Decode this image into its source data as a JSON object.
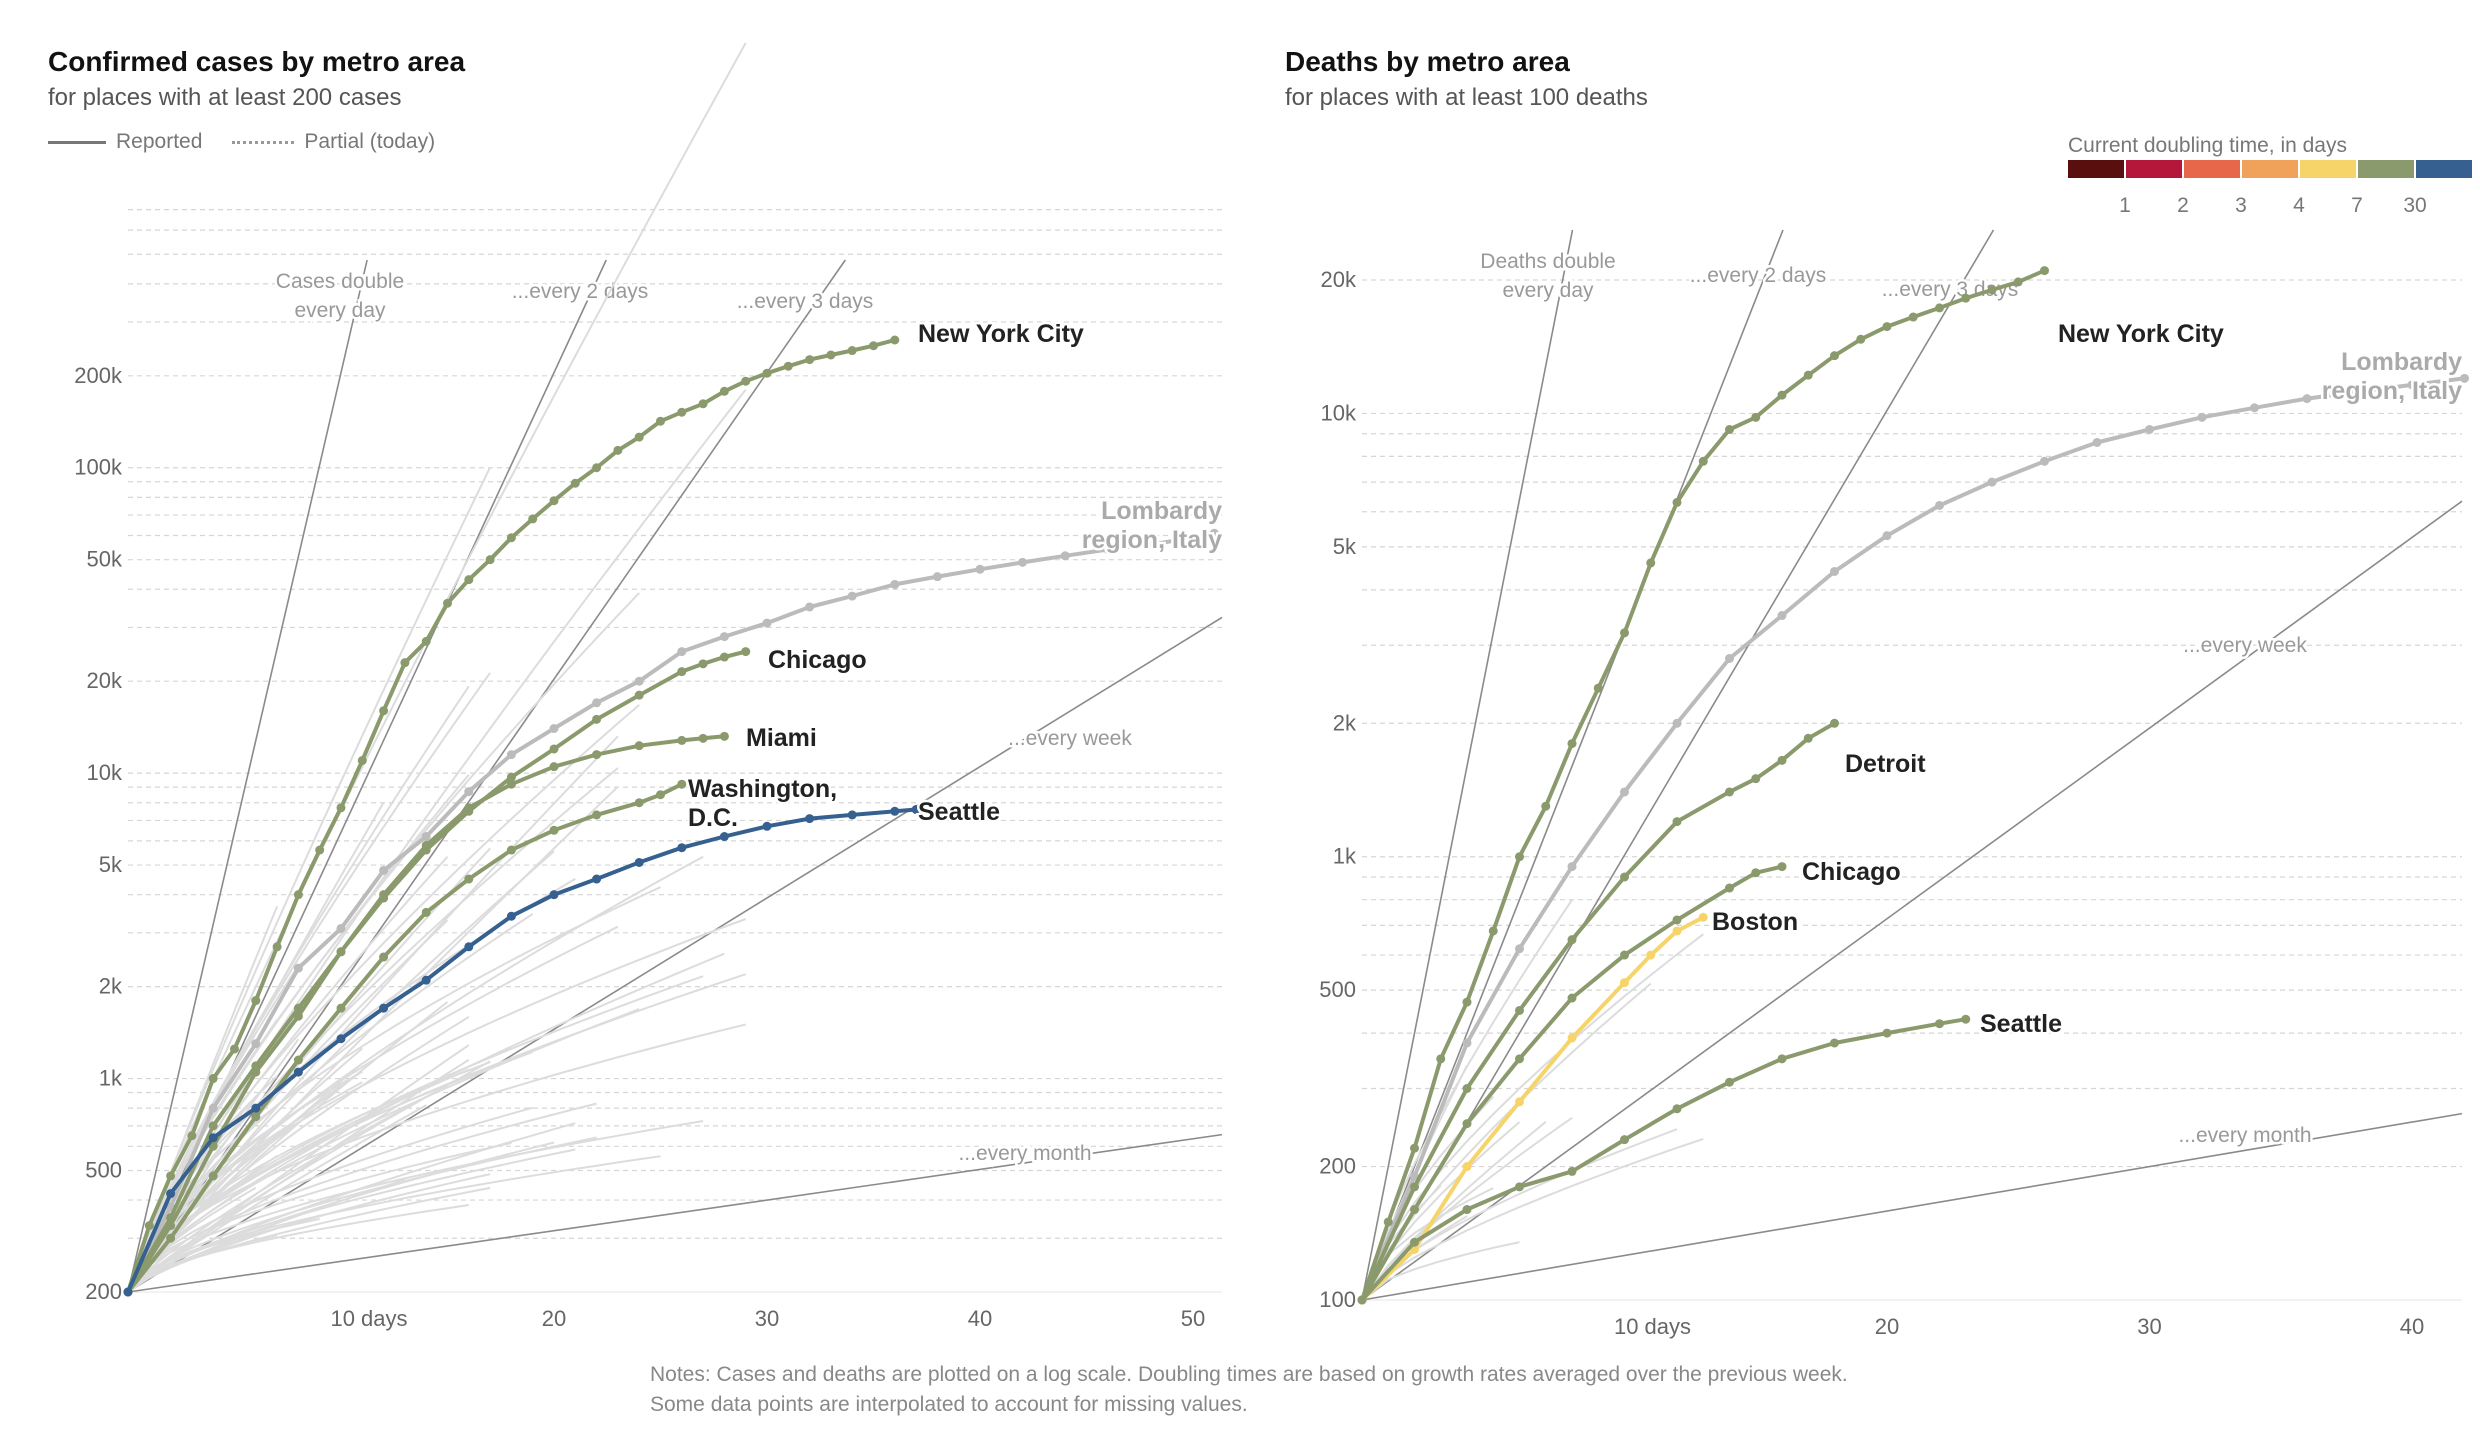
{
  "header": {
    "left_title": "Confirmed cases by metro area",
    "left_subtitle": "for places with at least 200 cases",
    "legend_reported": "Reported",
    "legend_partial": "Partial (today)",
    "right_title": "Deaths by metro area",
    "right_subtitle": "for places with at least 100 deaths",
    "color_legend_title": "Current doubling time, in days"
  },
  "color_legend": [
    {
      "label": "1",
      "color": "#5a0f0f"
    },
    {
      "label": "2",
      "color": "#b4173a"
    },
    {
      "label": "3",
      "color": "#e7674a"
    },
    {
      "label": "4",
      "color": "#f0a15a"
    },
    {
      "label": "7",
      "color": "#f6d46a"
    },
    {
      "label": "30",
      "color": "#8a9a6c"
    },
    {
      "label": "",
      "color": "#35608f"
    }
  ],
  "notes": "Notes: Cases and deaths are plotted on a log scale. Doubling times are based on growth rates averaged over the previous week. Some data points are interpolated to account for missing values.",
  "chart_data": [
    {
      "type": "line",
      "title": "Confirmed cases by metro area",
      "subtitle": "for places with at least 200 cases",
      "xlabel": "days",
      "x_tick_labels": [
        "10 days",
        "20",
        "30",
        "40",
        "50"
      ],
      "x_ticks": [
        10,
        20,
        30,
        40,
        50
      ],
      "xlim": [
        0,
        52
      ],
      "ylim": [
        200,
        400000
      ],
      "yscale": "log",
      "y_ticks": [
        200,
        500,
        1000,
        2000,
        5000,
        10000,
        20000,
        50000,
        100000,
        200000
      ],
      "y_tick_labels": [
        "200",
        "500",
        "1k",
        "2k",
        "5k",
        "10k",
        "20k",
        "50k",
        "100k",
        "200k"
      ],
      "grid": true,
      "doubling_guides": [
        {
          "label": "Cases double every day",
          "days": 1
        },
        {
          "label": "...every 2 days",
          "days": 2
        },
        {
          "label": "...every 3 days",
          "days": 3
        },
        {
          "label": "...every week",
          "days": 7
        },
        {
          "label": "...every month",
          "days": 30
        }
      ],
      "series": [
        {
          "name": "New York City",
          "color": "#8a9a6c",
          "highlight": true,
          "x": [
            0,
            1,
            2,
            3,
            4,
            5,
            6,
            7,
            8,
            9,
            10,
            11,
            12,
            13,
            14,
            15,
            16,
            17,
            18,
            19,
            20,
            21,
            22,
            23,
            24,
            25,
            26,
            27,
            28,
            29,
            30,
            31,
            32,
            33,
            34,
            35,
            36
          ],
          "y": [
            200,
            330,
            480,
            650,
            1000,
            1250,
            1800,
            2700,
            4000,
            5600,
            7700,
            11000,
            16000,
            23000,
            27000,
            36000,
            43000,
            50000,
            59000,
            68000,
            78000,
            89000,
            100000,
            114000,
            126000,
            142000,
            152000,
            162000,
            178000,
            192000,
            204000,
            215000,
            226000,
            234000,
            242000,
            251000,
            262000
          ]
        },
        {
          "name": "Lombardy region, Italy",
          "color": "#bbbbbb",
          "highlight": true,
          "x": [
            0,
            2,
            4,
            6,
            8,
            10,
            12,
            14,
            16,
            18,
            20,
            22,
            24,
            26,
            28,
            30,
            32,
            34,
            36,
            38,
            40,
            42,
            44,
            46,
            48,
            50,
            51
          ],
          "y": [
            200,
            380,
            800,
            1300,
            2300,
            3100,
            4800,
            6200,
            8700,
            11500,
            14000,
            17000,
            20000,
            25000,
            28000,
            31000,
            35000,
            38000,
            41500,
            44000,
            46500,
            49000,
            51500,
            54000,
            56000,
            59000,
            61000
          ]
        },
        {
          "name": "Chicago",
          "color": "#8a9a6c",
          "highlight": true,
          "x": [
            0,
            2,
            4,
            6,
            8,
            10,
            12,
            14,
            16,
            18,
            20,
            22,
            24,
            26,
            27,
            28,
            29
          ],
          "y": [
            200,
            350,
            700,
            1100,
            1700,
            2600,
            3900,
            5600,
            7500,
            9700,
            12000,
            15000,
            18000,
            21500,
            22800,
            24000,
            25000
          ]
        },
        {
          "name": "Miami",
          "color": "#8a9a6c",
          "highlight": true,
          "x": [
            0,
            2,
            4,
            6,
            8,
            10,
            12,
            14,
            16,
            18,
            20,
            22,
            24,
            26,
            27,
            28
          ],
          "y": [
            200,
            330,
            600,
            1050,
            1600,
            2600,
            4000,
            5800,
            7700,
            9200,
            10500,
            11500,
            12300,
            12800,
            13000,
            13200
          ]
        },
        {
          "name": "Washington, D.C.",
          "color": "#8a9a6c",
          "highlight": true,
          "x": [
            0,
            2,
            4,
            6,
            8,
            10,
            12,
            14,
            16,
            18,
            20,
            22,
            24,
            25,
            26
          ],
          "y": [
            200,
            300,
            480,
            750,
            1150,
            1700,
            2500,
            3500,
            4500,
            5600,
            6500,
            7300,
            8000,
            8500,
            9200
          ]
        },
        {
          "name": "Seattle",
          "color": "#35608f",
          "highlight": true,
          "x": [
            0,
            2,
            4,
            6,
            8,
            10,
            12,
            14,
            16,
            18,
            20,
            22,
            24,
            26,
            28,
            30,
            32,
            34,
            36,
            37
          ],
          "y": [
            200,
            420,
            640,
            800,
            1050,
            1350,
            1700,
            2100,
            2700,
            3400,
            4000,
            4500,
            5100,
            5700,
            6200,
            6700,
            7100,
            7300,
            7500,
            7600
          ]
        }
      ],
      "labels": [
        "New York City",
        "Lombardy region, Italy",
        "Chicago",
        "Miami",
        "Washington, D.C.",
        "Seattle"
      ]
    },
    {
      "type": "line",
      "title": "Deaths by metro area",
      "subtitle": "for places with at least 100 deaths",
      "xlabel": "days",
      "x_tick_labels": [
        "10 days",
        "20",
        "30",
        "40"
      ],
      "x_ticks": [
        10,
        20,
        30,
        40
      ],
      "xlim": [
        0,
        42
      ],
      "ylim": [
        100,
        30000
      ],
      "yscale": "log",
      "y_ticks": [
        100,
        200,
        500,
        1000,
        2000,
        5000,
        10000,
        20000
      ],
      "y_tick_labels": [
        "100",
        "200",
        "500",
        "1k",
        "2k",
        "5k",
        "10k",
        "20k"
      ],
      "grid": true,
      "doubling_guides": [
        {
          "label": "Deaths double every day",
          "days": 1
        },
        {
          "label": "...every 2 days",
          "days": 2
        },
        {
          "label": "...every 3 days",
          "days": 3
        },
        {
          "label": "...every week",
          "days": 7
        },
        {
          "label": "...every month",
          "days": 30
        }
      ],
      "series": [
        {
          "name": "New York City",
          "color": "#8a9a6c",
          "highlight": true,
          "x": [
            0,
            1,
            2,
            3,
            4,
            5,
            6,
            7,
            8,
            9,
            10,
            11,
            12,
            13,
            14,
            15,
            16,
            17,
            18,
            19,
            20,
            21,
            22,
            23,
            24,
            25,
            26
          ],
          "y": [
            100,
            150,
            220,
            350,
            470,
            680,
            1000,
            1300,
            1800,
            2400,
            3200,
            4600,
            6300,
            7800,
            9200,
            9800,
            11000,
            12200,
            13500,
            14700,
            15700,
            16500,
            17300,
            18200,
            19000,
            19800,
            21000
          ]
        },
        {
          "name": "Lombardy region, Italy",
          "color": "#bbbbbb",
          "highlight": true,
          "x": [
            0,
            2,
            4,
            6,
            8,
            10,
            12,
            14,
            16,
            18,
            20,
            22,
            24,
            26,
            28,
            30,
            32,
            34,
            36,
            38,
            40,
            42
          ],
          "y": [
            100,
            190,
            380,
            620,
            950,
            1400,
            2000,
            2800,
            3500,
            4400,
            5300,
            6200,
            7000,
            7800,
            8600,
            9200,
            9800,
            10300,
            10800,
            11200,
            11600,
            12000
          ]
        },
        {
          "name": "Detroit",
          "color": "#8a9a6c",
          "highlight": true,
          "x": [
            0,
            2,
            4,
            6,
            8,
            10,
            12,
            14,
            15,
            16,
            17,
            18
          ],
          "y": [
            100,
            180,
            300,
            450,
            650,
            900,
            1200,
            1400,
            1500,
            1650,
            1850,
            2000
          ]
        },
        {
          "name": "Chicago",
          "color": "#8a9a6c",
          "highlight": true,
          "x": [
            0,
            2,
            4,
            6,
            8,
            10,
            12,
            14,
            15,
            16
          ],
          "y": [
            100,
            160,
            250,
            350,
            480,
            600,
            720,
            850,
            920,
            950
          ]
        },
        {
          "name": "Boston",
          "color": "#f6d46a",
          "highlight": true,
          "x": [
            0,
            2,
            4,
            6,
            8,
            10,
            11,
            12,
            13
          ],
          "y": [
            100,
            130,
            200,
            280,
            390,
            520,
            600,
            680,
            730
          ]
        },
        {
          "name": "Seattle",
          "color": "#8a9a6c",
          "highlight": true,
          "x": [
            0,
            2,
            4,
            6,
            8,
            10,
            12,
            14,
            16,
            18,
            20,
            22,
            23
          ],
          "y": [
            100,
            135,
            160,
            180,
            195,
            230,
            270,
            310,
            350,
            380,
            400,
            420,
            430
          ]
        }
      ],
      "labels": [
        "New York City",
        "Lombardy region, Italy",
        "Detroit",
        "Chicago",
        "Boston",
        "Seattle"
      ]
    }
  ]
}
